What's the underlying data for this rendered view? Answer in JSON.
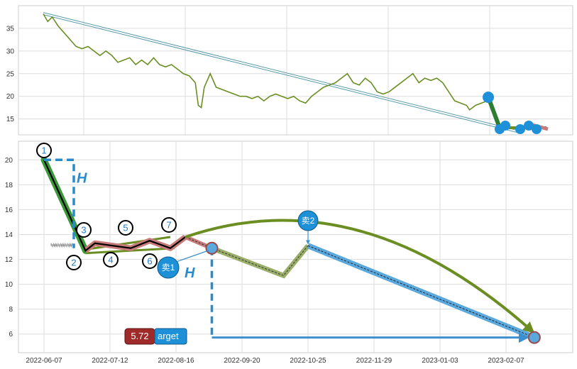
{
  "chart_data": [
    {
      "type": "line",
      "panel": "overview",
      "title": "",
      "ylim": [
        11.5,
        40
      ],
      "yticks": [
        15,
        20,
        25,
        30,
        35
      ],
      "grid": true,
      "series": [
        {
          "color": "#6b8e23",
          "points": [
            [
              0,
              38.2
            ],
            [
              3,
              36.5
            ],
            [
              6,
              37.5
            ],
            [
              10,
              35.5
            ],
            [
              14,
              34
            ],
            [
              18,
              32.5
            ],
            [
              22,
              31
            ],
            [
              26,
              30.5
            ],
            [
              30,
              31
            ],
            [
              34,
              30
            ],
            [
              38,
              29
            ],
            [
              42,
              30
            ],
            [
              46,
              29
            ],
            [
              50,
              27.5
            ],
            [
              54,
              28
            ],
            [
              58,
              28.5
            ],
            [
              62,
              27
            ],
            [
              66,
              28
            ],
            [
              70,
              27
            ],
            [
              74,
              28.5
            ],
            [
              78,
              27
            ],
            [
              82,
              26.5
            ],
            [
              86,
              27
            ],
            [
              90,
              26
            ],
            [
              94,
              25
            ],
            [
              98,
              24.5
            ],
            [
              102,
              23
            ],
            [
              104,
              18
            ],
            [
              106,
              17.5
            ],
            [
              108,
              22
            ],
            [
              112,
              25
            ],
            [
              116,
              22
            ],
            [
              120,
              21.5
            ],
            [
              124,
              21
            ],
            [
              128,
              20.5
            ],
            [
              132,
              20
            ],
            [
              136,
              20
            ],
            [
              140,
              19.5
            ],
            [
              144,
              20
            ],
            [
              148,
              19
            ],
            [
              152,
              20
            ],
            [
              156,
              20.5
            ],
            [
              160,
              20
            ],
            [
              164,
              19.5
            ],
            [
              168,
              20
            ],
            [
              172,
              19
            ],
            [
              176,
              18.5
            ],
            [
              180,
              20
            ],
            [
              184,
              21
            ],
            [
              188,
              22
            ],
            [
              192,
              22.5
            ],
            [
              196,
              23
            ],
            [
              200,
              24
            ],
            [
              204,
              25
            ],
            [
              208,
              23
            ],
            [
              212,
              22.5
            ],
            [
              216,
              24
            ],
            [
              220,
              23
            ],
            [
              224,
              21
            ],
            [
              228,
              20.5
            ],
            [
              232,
              21
            ],
            [
              236,
              22
            ],
            [
              240,
              23
            ],
            [
              244,
              24
            ],
            [
              248,
              25
            ],
            [
              252,
              23
            ],
            [
              256,
              24
            ],
            [
              260,
              23.5
            ],
            [
              264,
              24
            ],
            [
              268,
              23
            ],
            [
              272,
              21
            ],
            [
              276,
              19
            ],
            [
              280,
              18.5
            ],
            [
              284,
              18
            ],
            [
              286,
              17
            ],
            [
              290,
              18
            ],
            [
              294,
              18.5
            ],
            [
              298,
              19
            ],
            [
              302,
              19.5
            ]
          ]
        }
      ],
      "annotations": {
        "trend_line_from": [
          0,
          38.5
        ],
        "trend_line_to": [
          318,
          12.5
        ],
        "marker_value": 19.8
      }
    },
    {
      "type": "line",
      "panel": "detail",
      "ylim": [
        4.5,
        21.5
      ],
      "yticks": [
        6,
        8,
        10,
        12,
        14,
        16,
        18,
        20
      ],
      "xtick_labels": [
        "2022-06-07",
        "2022-07-12",
        "2022-08-16",
        "2022-09-20",
        "2022-10-25",
        "2022-11-29",
        "2023-01-03",
        "2023-02-07"
      ],
      "grid": true,
      "series": [
        {
          "name": "",
          "color": "#000000",
          "points": [
            [
              "2022-06-07",
              20
            ],
            [
              "2022-06-29",
              12.7
            ],
            [
              "2022-07-04",
              13.3
            ],
            [
              "2022-07-23",
              12.9
            ],
            [
              "2022-08-02",
              13.5
            ],
            [
              "2022-08-13",
              12.9
            ],
            [
              "2022-08-21",
              13.8
            ]
          ]
        },
        {
          "name": "",
          "color": "#6b8e23",
          "points": [
            [
              "2022-09-04",
              12.9
            ],
            [
              "2022-10-12",
              10.7
            ],
            [
              "2022-10-25",
              13.1
            ],
            [
              "2023-02-22",
              5.72
            ]
          ]
        }
      ],
      "points_labels": [
        "1",
        "2",
        "3",
        "4",
        "5",
        "6",
        "7"
      ],
      "labels": {
        "h_top": "H",
        "h_bottom": "H",
        "sell1": "卖1",
        "sell2": "卖2",
        "target_value": "5.72",
        "target_text": "arget"
      }
    }
  ]
}
